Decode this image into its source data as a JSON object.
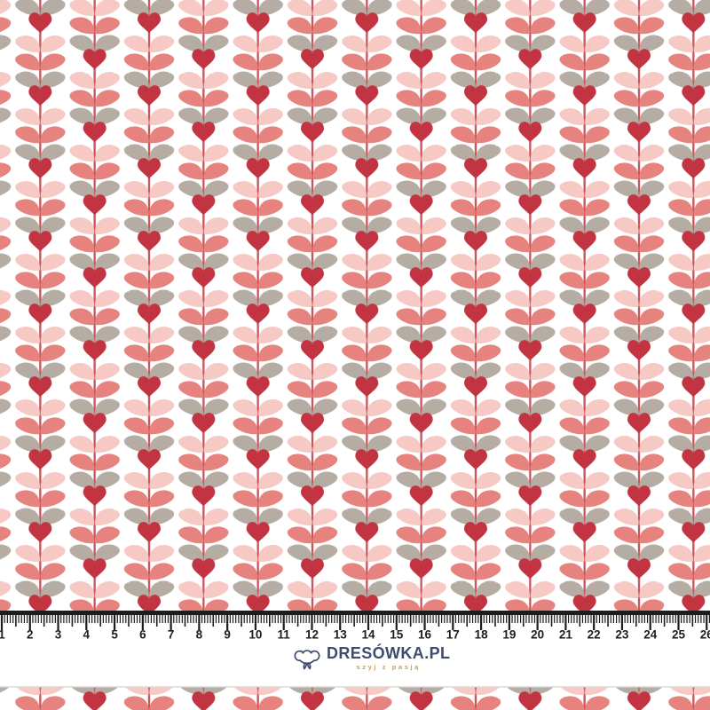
{
  "page": {
    "description": "Fabric swatch product image: retro hearts-and-leaves floral stripe pattern with centimeter ruler and shop watermark"
  },
  "pattern": {
    "background": "#ffffff",
    "motifs": [
      "heart-motif",
      "pink-leaf-pair",
      "coral-leaf-pair",
      "taupe-leaf-pair",
      "stem-line"
    ],
    "colors": {
      "heart": "#c23441",
      "coral": "#e6837e",
      "pink": "#f6c9c5",
      "gray": "#b5aca4",
      "stem": "#ca565c"
    },
    "divider_color": "#dbd7d3"
  },
  "ruler": {
    "unit": "cm",
    "bar_color": "#1d1d1d",
    "tick_color": "#1d1d1d",
    "number_color": "#1d1d1d",
    "numbers": [
      "1",
      "2",
      "3",
      "4",
      "5",
      "6",
      "7",
      "8",
      "9",
      "10",
      "11",
      "12",
      "13",
      "14",
      "15",
      "16",
      "17",
      "18",
      "19",
      "20",
      "21",
      "22",
      "23",
      "24",
      "25",
      "26"
    ]
  },
  "logo": {
    "title": "DRESÓWKA.PL",
    "tagline": "szyj z pasją",
    "title_color": "#3e4d6e",
    "tagline_color": "#c5a05f",
    "icon": "cotton-flower-icon"
  }
}
